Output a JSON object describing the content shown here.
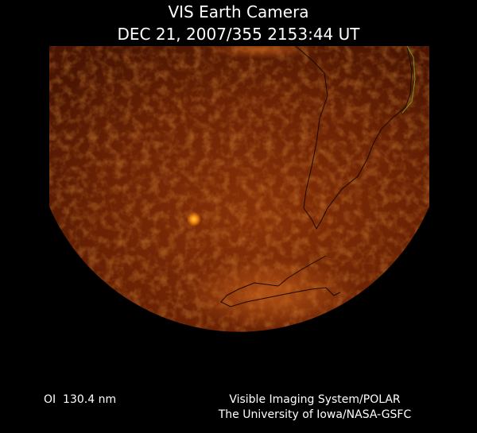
{
  "header": {
    "title": "VIS Earth Camera",
    "timestamp": "DEC 21, 2007/355 2153:44 UT"
  },
  "footer": {
    "wavelength": "OI  130.4 nm",
    "instrument": "Visible Imaging System/POLAR",
    "institution": "The University of Iowa/NASA-GSFC"
  }
}
